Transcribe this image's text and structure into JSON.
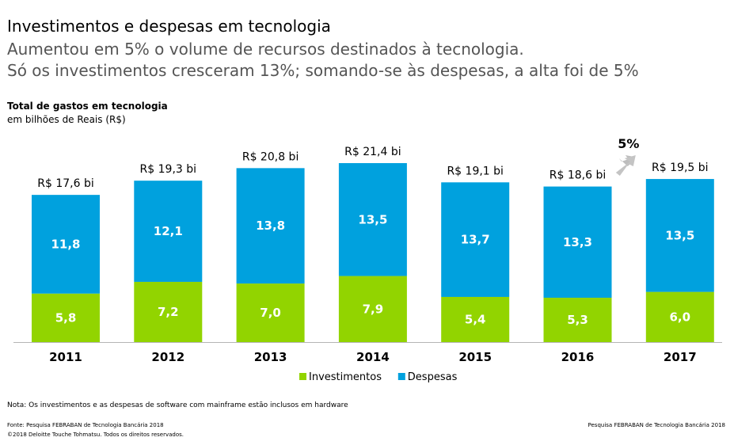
{
  "header": {
    "title": "Investimentos e despesas em tecnologia",
    "subtitle_1": "Aumentou em 5% o volume de recursos destinados à tecnologia.",
    "subtitle_2": "Só os investimentos cresceram 13%; somando-se às despesas, a alta foi de 5%"
  },
  "chart_data": {
    "type": "bar",
    "stacked": true,
    "title": "Total de gastos em tecnologia",
    "subtitle": "em bilhões de Reais (R$)",
    "categories": [
      "2011",
      "2012",
      "2013",
      "2014",
      "2015",
      "2016",
      "2017"
    ],
    "series": [
      {
        "name": "Investimentos",
        "values": [
          5.8,
          7.2,
          7.0,
          7.9,
          5.4,
          5.3,
          6.0
        ],
        "labels": [
          "5,8",
          "7,2",
          "7,0",
          "7,9",
          "5,4",
          "5,3",
          "6,0"
        ],
        "color": "#92D400"
      },
      {
        "name": "Despesas",
        "values": [
          11.8,
          12.1,
          13.8,
          13.5,
          13.7,
          13.3,
          13.5
        ],
        "labels": [
          "11,8",
          "12,1",
          "13,8",
          "13,5",
          "13,7",
          "13,3",
          "13,5"
        ],
        "color": "#00A1DE"
      }
    ],
    "totals": [
      "R$ 17,6 bi",
      "R$ 19,3 bi",
      "R$ 20,8 bi",
      "R$ 21,4 bi",
      "R$ 19,1 bi",
      "R$ 18,6 bi",
      "R$ 19,5 bi"
    ],
    "annotation": {
      "text": "5%",
      "category": "2017"
    },
    "ylim": [
      0,
      21.4
    ],
    "legend_position": "bottom-center",
    "grid": false
  },
  "footer": {
    "note": "Nota: Os investimentos e as despesas de software com mainframe estão inclusos em hardware",
    "source": "Fonte: Pesquisa FEBRABAN de Tecnologia Bancária 2018",
    "copyright": "©2018 Deloitte Touche Tohmatsu. Todos os direitos reservados.",
    "source_right": "Pesquisa FEBRABAN de Tecnologia Bancária 2018"
  }
}
